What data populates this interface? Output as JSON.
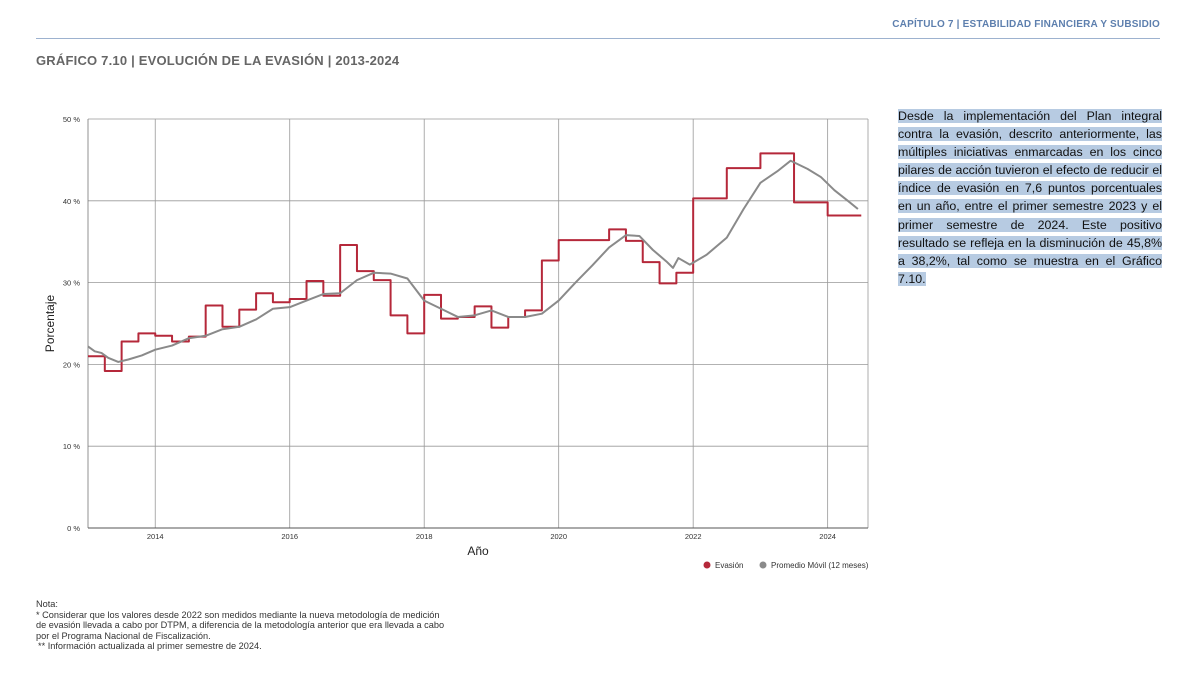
{
  "header": {
    "chapter": "CAPÍTULO 7 | ESTABILIDAD FINANCIERA Y SUBSIDIO",
    "figure_title": "GRÁFICO 7.10 | EVOLUCIÓN DE LA EVASIÓN | 2013-2024"
  },
  "side_text": "Desde la implementación del Plan integral contra la evasión, descrito anteriormente, las múltiples iniciativas enmarcadas en los cinco pilares de acción tuvieron el efecto de reducir el índice de evasión en 7,6 puntos porcentuales en un año, entre el primer semestre 2023 y el primer semestre de 2024. Este positivo resultado se refleja en la disminución de 45,8% a 38,2%, tal como se muestra en el Gráfico 7.10.",
  "notes": {
    "label": "Nota:",
    "note1": "* Considerar que los valores desde 2022 son medidos mediante la nueva metodología de medición de evasión llevada a cabo por DTPM, a diferencia de la metodología anterior que era llevada a cabo por el Programa Nacional de Fiscalización.",
    "note2": " ** Información actualizada al primer semestre de 2024."
  },
  "chart_data": {
    "type": "line",
    "xlabel": "Año",
    "ylabel": "Porcentaje",
    "xlim": [
      2013.0,
      2024.6
    ],
    "ylim": [
      0,
      50
    ],
    "x_ticks": [
      2014,
      2016,
      2018,
      2020,
      2022,
      2024
    ],
    "y_ticks": [
      0,
      10,
      20,
      30,
      40,
      50
    ],
    "y_tick_labels": [
      "0 %",
      "10 %",
      "20 %",
      "30 %",
      "40 %",
      "50 %"
    ],
    "grid": true,
    "legend_position": "bottom-right",
    "series": [
      {
        "name": "Evasión",
        "color": "#b5283a",
        "step": "hv",
        "points": [
          [
            2013.0,
            21.0
          ],
          [
            2013.25,
            19.2
          ],
          [
            2013.5,
            22.8
          ],
          [
            2013.75,
            23.8
          ],
          [
            2014.0,
            23.5
          ],
          [
            2014.25,
            22.8
          ],
          [
            2014.5,
            23.4
          ],
          [
            2014.75,
            27.2
          ],
          [
            2015.0,
            24.6
          ],
          [
            2015.25,
            26.7
          ],
          [
            2015.5,
            28.7
          ],
          [
            2015.75,
            27.6
          ],
          [
            2016.0,
            28.0
          ],
          [
            2016.25,
            30.2
          ],
          [
            2016.5,
            28.4
          ],
          [
            2016.75,
            34.6
          ],
          [
            2017.0,
            31.4
          ],
          [
            2017.25,
            30.3
          ],
          [
            2017.5,
            26.0
          ],
          [
            2017.75,
            23.8
          ],
          [
            2018.0,
            28.5
          ],
          [
            2018.25,
            25.6
          ],
          [
            2018.5,
            25.8
          ],
          [
            2018.75,
            27.1
          ],
          [
            2019.0,
            24.5
          ],
          [
            2019.25,
            25.8
          ],
          [
            2019.5,
            26.6
          ],
          [
            2019.75,
            32.7
          ],
          [
            2020.0,
            35.2
          ],
          [
            2020.25,
            35.2
          ],
          [
            2020.75,
            36.5
          ],
          [
            2021.0,
            35.1
          ],
          [
            2021.25,
            32.5
          ],
          [
            2021.5,
            29.9
          ],
          [
            2021.75,
            31.2
          ],
          [
            2022.0,
            40.3
          ],
          [
            2022.25,
            40.3
          ],
          [
            2022.5,
            44.0
          ],
          [
            2022.75,
            44.0
          ],
          [
            2023.0,
            45.8
          ],
          [
            2023.25,
            45.8
          ],
          [
            2023.5,
            39.8
          ],
          [
            2023.75,
            39.8
          ],
          [
            2024.0,
            38.2
          ],
          [
            2024.25,
            38.2
          ],
          [
            2024.5,
            38.2
          ]
        ]
      },
      {
        "name": "Promedio Móvil (12 meses)",
        "color": "#8a8a8a",
        "step": "none",
        "points": [
          [
            2013.0,
            22.2
          ],
          [
            2013.1,
            21.6
          ],
          [
            2013.2,
            21.4
          ],
          [
            2013.3,
            20.8
          ],
          [
            2013.45,
            20.3
          ],
          [
            2013.6,
            20.6
          ],
          [
            2013.8,
            21.1
          ],
          [
            2014.0,
            21.8
          ],
          [
            2014.25,
            22.3
          ],
          [
            2014.5,
            23.2
          ],
          [
            2014.75,
            23.5
          ],
          [
            2015.0,
            24.3
          ],
          [
            2015.25,
            24.6
          ],
          [
            2015.5,
            25.5
          ],
          [
            2015.75,
            26.8
          ],
          [
            2016.0,
            27.0
          ],
          [
            2016.25,
            27.8
          ],
          [
            2016.5,
            28.6
          ],
          [
            2016.75,
            28.7
          ],
          [
            2017.0,
            30.3
          ],
          [
            2017.25,
            31.2
          ],
          [
            2017.5,
            31.1
          ],
          [
            2017.75,
            30.5
          ],
          [
            2018.0,
            27.8
          ],
          [
            2018.25,
            26.8
          ],
          [
            2018.5,
            25.8
          ],
          [
            2018.75,
            26.0
          ],
          [
            2019.0,
            26.6
          ],
          [
            2019.25,
            25.8
          ],
          [
            2019.5,
            25.8
          ],
          [
            2019.75,
            26.2
          ],
          [
            2020.0,
            27.8
          ],
          [
            2020.25,
            30.0
          ],
          [
            2020.5,
            32.1
          ],
          [
            2020.75,
            34.3
          ],
          [
            2021.0,
            35.8
          ],
          [
            2021.2,
            35.7
          ],
          [
            2021.4,
            34.0
          ],
          [
            2021.6,
            32.6
          ],
          [
            2021.7,
            31.8
          ],
          [
            2021.78,
            33.0
          ],
          [
            2021.95,
            32.2
          ],
          [
            2022.2,
            33.4
          ],
          [
            2022.5,
            35.5
          ],
          [
            2022.75,
            39.0
          ],
          [
            2023.0,
            42.2
          ],
          [
            2023.25,
            43.6
          ],
          [
            2023.45,
            44.9
          ],
          [
            2023.7,
            43.9
          ],
          [
            2023.9,
            42.9
          ],
          [
            2024.1,
            41.3
          ],
          [
            2024.3,
            40.0
          ],
          [
            2024.45,
            39.0
          ]
        ]
      }
    ]
  }
}
